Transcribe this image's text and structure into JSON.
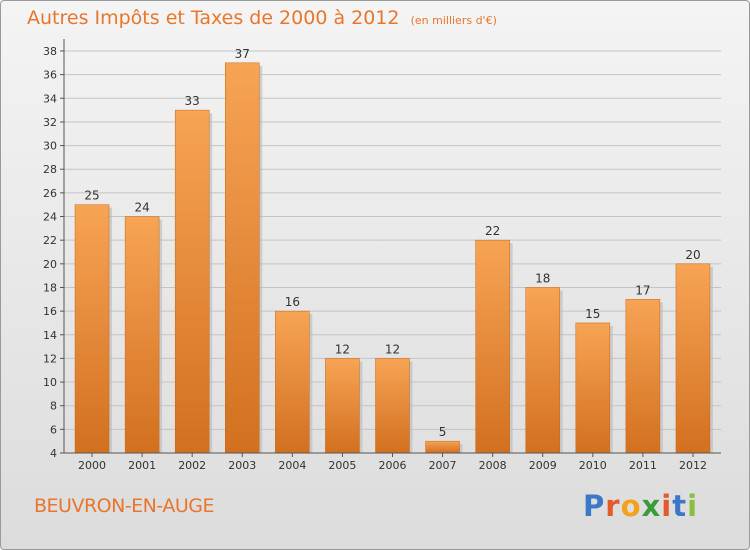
{
  "header": {
    "title": "Autres Impôts et Taxes de 2000 à 2012",
    "unit": "(en milliers d'€)"
  },
  "footer": {
    "commune": "BEUVRON-EN-AUGE",
    "brand": {
      "letters": [
        "P",
        "r",
        "o",
        "x",
        "i",
        "t",
        "i"
      ],
      "colors": [
        "#3b78c8",
        "#e35a2b",
        "#f3a21b",
        "#3b9b3b",
        "#e35a2b",
        "#3b78c8",
        "#8cbf3f"
      ]
    }
  },
  "colors": {
    "accent": "#e8762c",
    "bar_light": "#f7a455",
    "bar_dark": "#d2701f"
  },
  "chart_data": {
    "type": "bar",
    "categories": [
      "2000",
      "2001",
      "2002",
      "2003",
      "2004",
      "2005",
      "2006",
      "2007",
      "2008",
      "2009",
      "2010",
      "2011",
      "2012"
    ],
    "values": [
      25,
      24,
      33,
      37,
      16,
      12,
      12,
      5,
      22,
      18,
      15,
      17,
      20
    ],
    "ylim": [
      4,
      38
    ],
    "yticks": [
      4,
      6,
      8,
      10,
      12,
      14,
      16,
      18,
      20,
      22,
      24,
      26,
      28,
      30,
      32,
      34,
      36,
      38
    ],
    "grid": true
  }
}
